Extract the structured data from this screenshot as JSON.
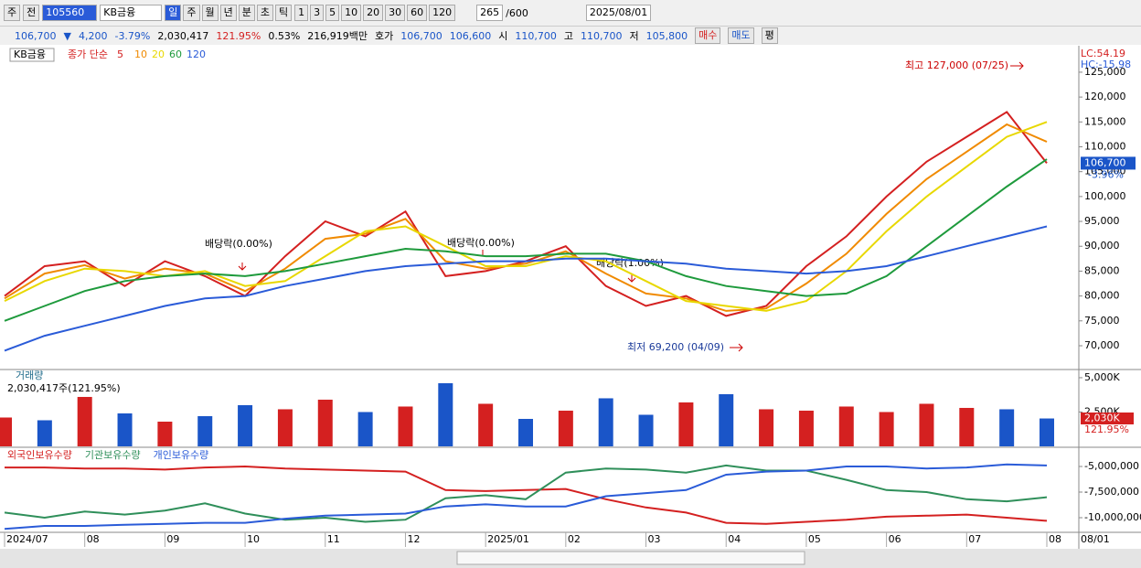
{
  "toolbar": {
    "mode": "주",
    "ref": "전",
    "code": "105560",
    "name": "KB금융",
    "periods": [
      "일",
      "주",
      "월",
      "년",
      "분",
      "초",
      "틱"
    ],
    "intervals": [
      "1",
      "3",
      "5",
      "10",
      "20",
      "30",
      "60",
      "120"
    ],
    "count": "265",
    "max": "/600",
    "date": "2025/08/01"
  },
  "quote": {
    "price": "106,700",
    "arrow": "▼",
    "change": "4,200",
    "rate": "-3.79%",
    "volume": "2,030,417",
    "vol_ratio": "121.95%",
    "turnover": "0.53%",
    "amount": "216,919백만",
    "ask_label": "호가",
    "ask": "106,700",
    "bid": "106,600",
    "open_label": "시",
    "open": "110,700",
    "high_label": "고",
    "high": "110,700",
    "low_label": "저",
    "low": "105,800",
    "buy": "매수",
    "sell": "매도",
    "avg": "평"
  },
  "chart_data": [
    {
      "type": "line",
      "legend_name": "KB금융",
      "ma_label": "종가 단순",
      "lc": "LC:54.19",
      "hc": "HC:-15.98",
      "last_label": "106,700",
      "last_rate": "-3.96%",
      "annotations": [
        "최고 127,000 (07/25)",
        "최저 69,200 (04/09)",
        "배당락(0.00%)",
        "배당락(0.00%)",
        "배당락(1.00%)"
      ],
      "ylim": [
        65400,
        129400
      ],
      "yticks": [
        {
          "value": 70000,
          "label": "70,000"
        },
        {
          "value": 75000,
          "label": "75,000"
        },
        {
          "value": 80000,
          "label": "80,000"
        },
        {
          "value": 85000,
          "label": "85,000"
        },
        {
          "value": 90000,
          "label": "90,000"
        },
        {
          "value": 95000,
          "label": "95,000"
        },
        {
          "value": 100000,
          "label": "100,000"
        },
        {
          "value": 105000,
          "label": "105,000"
        },
        {
          "value": 110000,
          "label": "110,000"
        },
        {
          "value": 115000,
          "label": "115,000"
        },
        {
          "value": 120000,
          "label": "120,000"
        },
        {
          "value": 125000,
          "label": "125,000"
        }
      ],
      "series": [
        {
          "name": "5",
          "color": "#d42020",
          "values": [
            80000,
            86000,
            87000,
            82000,
            87000,
            84000,
            80000,
            88000,
            95000,
            92000,
            97000,
            84000,
            85000,
            87000,
            90000,
            82000,
            78000,
            80000,
            76000,
            78000,
            86000,
            92000,
            100000,
            107000,
            112000,
            117000,
            106700
          ]
        },
        {
          "name": "10",
          "color": "#f08a00",
          "values": [
            79500,
            84500,
            86200,
            83500,
            85500,
            84500,
            81000,
            85500,
            91500,
            92500,
            95500,
            87000,
            85500,
            86500,
            89000,
            84500,
            80500,
            79500,
            77000,
            77500,
            82500,
            88500,
            96500,
            103500,
            109000,
            114500,
            111000
          ]
        },
        {
          "name": "20",
          "color": "#e8d800",
          "values": [
            79000,
            83000,
            85500,
            85000,
            84000,
            85000,
            82000,
            83000,
            88000,
            93000,
            94000,
            90000,
            86000,
            86000,
            88000,
            87000,
            83000,
            79000,
            78000,
            77000,
            79000,
            85000,
            93000,
            100000,
            106000,
            112000,
            115000
          ]
        },
        {
          "name": "60",
          "color": "#1e9a3c",
          "values": [
            75000,
            78000,
            81000,
            83000,
            84000,
            84500,
            84000,
            85000,
            86500,
            88000,
            89500,
            89000,
            88000,
            88000,
            88500,
            88500,
            87000,
            84000,
            82000,
            81000,
            80000,
            80500,
            84000,
            90000,
            96000,
            102000,
            107500
          ]
        },
        {
          "name": "120",
          "color": "#2a5bd8",
          "values": [
            69000,
            72000,
            74000,
            76000,
            78000,
            79500,
            80000,
            82000,
            83500,
            85000,
            86000,
            86500,
            87000,
            87000,
            87500,
            87500,
            87000,
            86500,
            85500,
            85000,
            84500,
            85000,
            86000,
            88000,
            90000,
            92000,
            94000
          ]
        }
      ]
    },
    {
      "type": "bar",
      "title": "거래량",
      "subtitle": "2,030,417주(121.95%)",
      "last_label": "2,030K",
      "last_rate": "121.95%",
      "ylim": [
        0,
        5530000
      ],
      "yticks": [
        {
          "value": 5000000,
          "label": "5,000K"
        },
        {
          "value": 2500000,
          "label": "2,500K"
        }
      ],
      "values": [
        2100000,
        1900000,
        3600000,
        2400000,
        1800000,
        2200000,
        3000000,
        2700000,
        3400000,
        2500000,
        2900000,
        4600000,
        3100000,
        2000000,
        2600000,
        3500000,
        2300000,
        3200000,
        3800000,
        2700000,
        2600000,
        2900000,
        2500000,
        3100000,
        2800000,
        2700000,
        2030417
      ],
      "colors": [
        "#d42020",
        "#1a55c8",
        "#d42020",
        "#1a55c8",
        "#d42020",
        "#1a55c8",
        "#1a55c8",
        "#d42020",
        "#d42020",
        "#1a55c8",
        "#d42020",
        "#1a55c8",
        "#d42020",
        "#1a55c8",
        "#d42020",
        "#1a55c8",
        "#1a55c8",
        "#d42020",
        "#1a55c8",
        "#d42020",
        "#d42020",
        "#d42020",
        "#d42020",
        "#d42020",
        "#d42020",
        "#1a55c8",
        "#1a55c8"
      ]
    },
    {
      "type": "line",
      "ylim": [
        -11250000,
        -3214000
      ],
      "yticks": [
        {
          "value": -5000000,
          "label": "-5,000,000"
        },
        {
          "value": -7500000,
          "label": "-7,500,000"
        },
        {
          "value": -10000000,
          "label": "-10,000,000"
        }
      ],
      "categories": [
        "2024/07",
        null,
        "08",
        null,
        "09",
        null,
        "10",
        null,
        "11",
        null,
        "12",
        null,
        "2025/01",
        null,
        "02",
        null,
        "03",
        null,
        "04",
        null,
        "05",
        null,
        "06",
        null,
        "07",
        null,
        "08"
      ],
      "x_end_label": "08/01",
      "series": [
        {
          "name": "외국인보유수량",
          "color": "#d42020",
          "values": [
            -5100000,
            -5100000,
            -5200000,
            -5200000,
            -5300000,
            -5100000,
            -5000000,
            -5200000,
            -5300000,
            -5400000,
            -5500000,
            -7300000,
            -7400000,
            -7300000,
            -7200000,
            -8200000,
            -9000000,
            -9500000,
            -10500000,
            -10600000,
            -10400000,
            -10200000,
            -9900000,
            -9800000,
            -9700000,
            -10000000,
            -10300000
          ]
        },
        {
          "name": "기관보유수량",
          "color": "#2f8f5a",
          "values": [
            -9500000,
            -10000000,
            -9400000,
            -9700000,
            -9300000,
            -8600000,
            -9600000,
            -10200000,
            -10000000,
            -10400000,
            -10200000,
            -8100000,
            -7800000,
            -8200000,
            -5600000,
            -5200000,
            -5300000,
            -5600000,
            -4900000,
            -5400000,
            -5400000,
            -6300000,
            -7300000,
            -7500000,
            -8200000,
            -8400000,
            -8000000
          ]
        },
        {
          "name": "개인보유수량",
          "color": "#2a5bd8",
          "values": [
            -11100000,
            -10800000,
            -10800000,
            -10700000,
            -10600000,
            -10500000,
            -10500000,
            -10100000,
            -9800000,
            -9700000,
            -9600000,
            -8900000,
            -8700000,
            -8900000,
            -8900000,
            -7900000,
            -7600000,
            -7300000,
            -5800000,
            -5500000,
            -5400000,
            -5000000,
            -5000000,
            -5200000,
            -5100000,
            -4800000,
            -4900000
          ]
        }
      ]
    }
  ]
}
